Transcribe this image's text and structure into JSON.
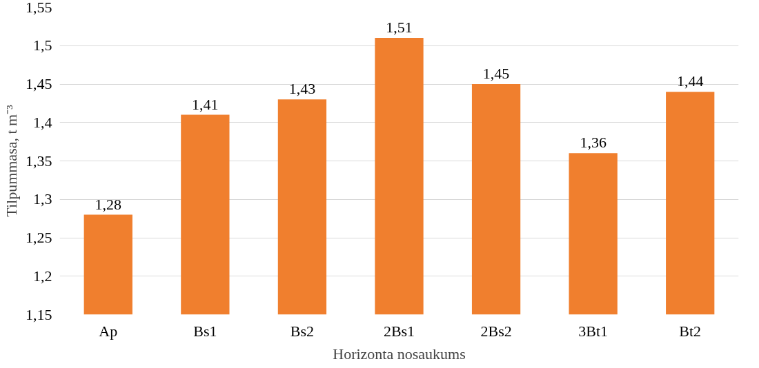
{
  "chart_data": {
    "type": "bar",
    "xlabel": "Horizonta nosaukums",
    "ylabel": "Tilpummasa, t m⁻³",
    "categories": [
      "Ap",
      "Bs1",
      "Bs2",
      "2Bs1",
      "2Bs2",
      "3Bt1",
      "Bt2"
    ],
    "values": [
      1.28,
      1.41,
      1.43,
      1.51,
      1.45,
      1.36,
      1.44
    ],
    "value_labels": [
      "1,28",
      "1,41",
      "1,43",
      "1,51",
      "1,45",
      "1,36",
      "1,44"
    ],
    "color": "#f07f2e",
    "ylim": [
      1.15,
      1.55
    ],
    "yticks": [
      {
        "value": 1.15,
        "label": "1,15"
      },
      {
        "value": 1.2,
        "label": "1,2"
      },
      {
        "value": 1.25,
        "label": "1,25"
      },
      {
        "value": 1.3,
        "label": "1,3"
      },
      {
        "value": 1.35,
        "label": "1,35"
      },
      {
        "value": 1.4,
        "label": "1,4"
      },
      {
        "value": 1.45,
        "label": "1,45"
      },
      {
        "value": 1.5,
        "label": "1,5"
      },
      {
        "value": 1.55,
        "label": "1,55"
      }
    ],
    "grid": "y"
  }
}
